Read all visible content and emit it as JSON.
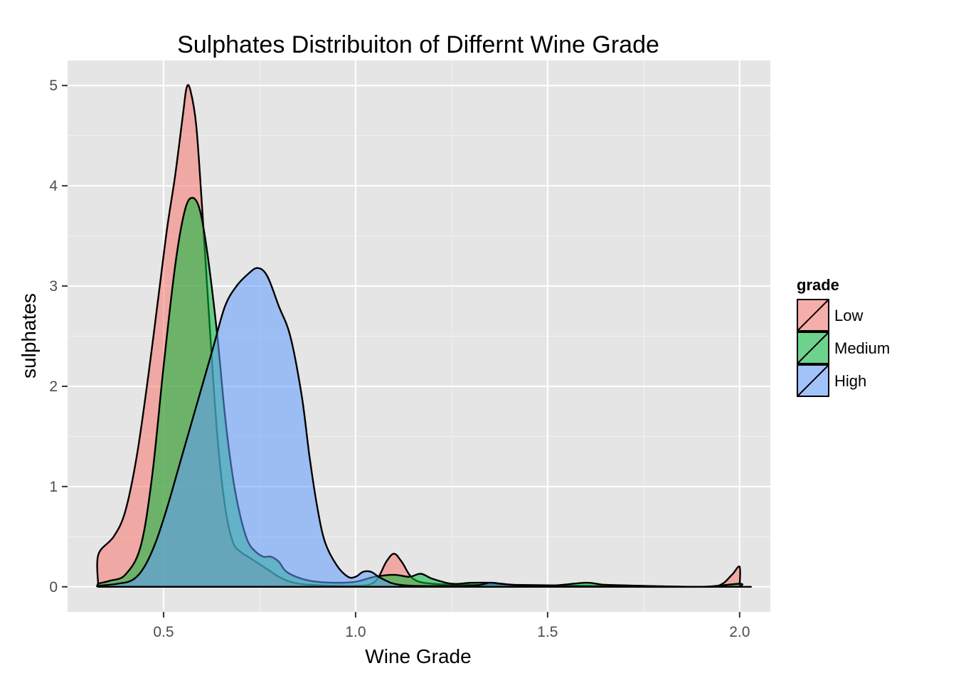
{
  "chart_data": {
    "type": "area",
    "title": "Sulphates Distribuiton of Differnt Wine Grade",
    "xlabel": "Wine Grade",
    "ylabel": "sulphates",
    "xlim": [
      0.25,
      2.08
    ],
    "ylim": [
      -0.25,
      5.25
    ],
    "x_ticks": [
      0.5,
      1.0,
      1.5,
      2.0
    ],
    "x_tick_labels": [
      "0.5",
      "1.0",
      "1.5",
      "2.0"
    ],
    "y_ticks": [
      0,
      1,
      2,
      3,
      4,
      5
    ],
    "y_tick_labels": [
      "0",
      "1",
      "2",
      "3",
      "4",
      "5"
    ],
    "grid": true,
    "legend": {
      "title": "grade",
      "position": "right"
    },
    "series": [
      {
        "name": "Low",
        "color": "#F8766D",
        "points": [
          [
            0.33,
            0.0
          ],
          [
            0.33,
            0.32
          ],
          [
            0.37,
            0.5
          ],
          [
            0.4,
            0.75
          ],
          [
            0.43,
            1.3
          ],
          [
            0.46,
            2.1
          ],
          [
            0.49,
            3.0
          ],
          [
            0.51,
            3.6
          ],
          [
            0.53,
            4.1
          ],
          [
            0.55,
            4.7
          ],
          [
            0.56,
            4.98
          ],
          [
            0.57,
            4.95
          ],
          [
            0.585,
            4.6
          ],
          [
            0.6,
            3.8
          ],
          [
            0.62,
            2.6
          ],
          [
            0.64,
            1.5
          ],
          [
            0.66,
            0.8
          ],
          [
            0.68,
            0.45
          ],
          [
            0.7,
            0.35
          ],
          [
            0.72,
            0.3
          ],
          [
            0.74,
            0.25
          ],
          [
            0.76,
            0.2
          ],
          [
            0.78,
            0.15
          ],
          [
            0.8,
            0.1
          ],
          [
            0.83,
            0.05
          ],
          [
            0.88,
            0.02
          ],
          [
            1.0,
            0.01
          ],
          [
            1.05,
            0.05
          ],
          [
            1.08,
            0.25
          ],
          [
            1.1,
            0.33
          ],
          [
            1.12,
            0.25
          ],
          [
            1.15,
            0.08
          ],
          [
            1.2,
            0.03
          ],
          [
            1.3,
            0.02
          ],
          [
            1.4,
            0.02
          ],
          [
            1.6,
            0.01
          ],
          [
            1.9,
            0.0
          ],
          [
            1.95,
            0.02
          ],
          [
            1.98,
            0.12
          ],
          [
            2.0,
            0.2
          ],
          [
            2.0,
            0.0
          ]
        ]
      },
      {
        "name": "Medium",
        "color": "#00BA38",
        "points": [
          [
            0.33,
            0.0
          ],
          [
            0.33,
            0.03
          ],
          [
            0.36,
            0.06
          ],
          [
            0.4,
            0.12
          ],
          [
            0.44,
            0.4
          ],
          [
            0.47,
            1.1
          ],
          [
            0.5,
            2.2
          ],
          [
            0.53,
            3.2
          ],
          [
            0.555,
            3.75
          ],
          [
            0.575,
            3.88
          ],
          [
            0.595,
            3.75
          ],
          [
            0.615,
            3.3
          ],
          [
            0.64,
            2.5
          ],
          [
            0.66,
            1.7
          ],
          [
            0.68,
            1.1
          ],
          [
            0.7,
            0.7
          ],
          [
            0.72,
            0.45
          ],
          [
            0.74,
            0.35
          ],
          [
            0.76,
            0.3
          ],
          [
            0.78,
            0.3
          ],
          [
            0.8,
            0.25
          ],
          [
            0.82,
            0.15
          ],
          [
            0.86,
            0.08
          ],
          [
            0.9,
            0.05
          ],
          [
            0.95,
            0.04
          ],
          [
            1.0,
            0.05
          ],
          [
            1.05,
            0.1
          ],
          [
            1.1,
            0.12
          ],
          [
            1.14,
            0.1
          ],
          [
            1.17,
            0.13
          ],
          [
            1.2,
            0.08
          ],
          [
            1.25,
            0.03
          ],
          [
            1.3,
            0.04
          ],
          [
            1.35,
            0.04
          ],
          [
            1.4,
            0.02
          ],
          [
            1.5,
            0.01
          ],
          [
            1.6,
            0.04
          ],
          [
            1.65,
            0.02
          ],
          [
            1.75,
            0.01
          ],
          [
            1.9,
            0.0
          ],
          [
            2.0,
            0.03
          ],
          [
            2.0,
            0.0
          ]
        ]
      },
      {
        "name": "High",
        "color": "#619CFF",
        "points": [
          [
            0.33,
            0.0
          ],
          [
            0.33,
            0.01
          ],
          [
            0.38,
            0.03
          ],
          [
            0.42,
            0.07
          ],
          [
            0.45,
            0.2
          ],
          [
            0.48,
            0.45
          ],
          [
            0.51,
            0.8
          ],
          [
            0.54,
            1.2
          ],
          [
            0.57,
            1.6
          ],
          [
            0.6,
            2.0
          ],
          [
            0.63,
            2.4
          ],
          [
            0.66,
            2.8
          ],
          [
            0.69,
            3.0
          ],
          [
            0.72,
            3.12
          ],
          [
            0.745,
            3.18
          ],
          [
            0.77,
            3.1
          ],
          [
            0.8,
            2.8
          ],
          [
            0.83,
            2.5
          ],
          [
            0.86,
            1.9
          ],
          [
            0.88,
            1.3
          ],
          [
            0.9,
            0.8
          ],
          [
            0.92,
            0.45
          ],
          [
            0.95,
            0.22
          ],
          [
            0.98,
            0.1
          ],
          [
            1.0,
            0.1
          ],
          [
            1.02,
            0.15
          ],
          [
            1.04,
            0.15
          ],
          [
            1.06,
            0.1
          ],
          [
            1.08,
            0.06
          ],
          [
            1.1,
            0.03
          ],
          [
            1.15,
            0.01
          ],
          [
            1.3,
            0.01
          ],
          [
            1.35,
            0.04
          ],
          [
            1.38,
            0.03
          ],
          [
            1.45,
            0.01
          ],
          [
            1.6,
            0.0
          ],
          [
            2.0,
            0.0
          ],
          [
            2.0,
            0.0
          ]
        ]
      }
    ]
  }
}
